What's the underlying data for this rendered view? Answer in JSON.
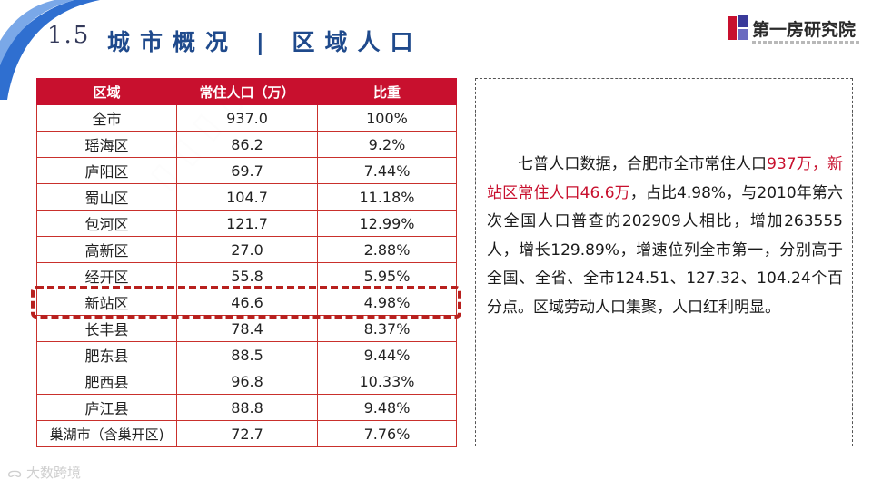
{
  "header": {
    "section_number": "1.5",
    "section_title": "城市概况 | 区域人口"
  },
  "logo": {
    "name": "第一房研究院"
  },
  "table": {
    "headers": [
      "区域",
      "常住人口（万）",
      "比重"
    ],
    "rows": [
      [
        "全市",
        "937.0",
        "100%"
      ],
      [
        "瑶海区",
        "86.2",
        "9.2%"
      ],
      [
        "庐阳区",
        "69.7",
        "7.44%"
      ],
      [
        "蜀山区",
        "104.7",
        "11.18%"
      ],
      [
        "包河区",
        "121.7",
        "12.99%"
      ],
      [
        "高新区",
        "27.0",
        "2.88%"
      ],
      [
        "经开区",
        "55.8",
        "5.95%"
      ],
      [
        "新站区",
        "46.6",
        "4.98%"
      ],
      [
        "长丰县",
        "78.4",
        "8.37%"
      ],
      [
        "肥东县",
        "88.5",
        "9.44%"
      ],
      [
        "肥西县",
        "96.8",
        "10.33%"
      ],
      [
        "庐江县",
        "88.8",
        "9.48%"
      ],
      [
        "巢湖市（含巢开区)",
        "72.7",
        "7.76%"
      ]
    ],
    "highlighted_row": "新站区"
  },
  "description": {
    "part1": "七普人口数据，合肥市全市常住人口",
    "part2_red": "937万，",
    "part3_red": "新站区常住人口46.6万",
    "part4": "，占比4.98%，与2010年第六次全国人口普查的202909人相比，增加263555人，增长129.89%，增速位列全市第一，分别高于全国、全省、全市124.51、127.32、104.24个百分点。区域劳动人口集聚，人口红利明显。"
  },
  "footer": {
    "watermark": "大数跨境"
  },
  "colors": {
    "accent_red": "#c8102e",
    "title_blue": "#1f4a8c",
    "arc_blue": "#2f6fd0"
  }
}
